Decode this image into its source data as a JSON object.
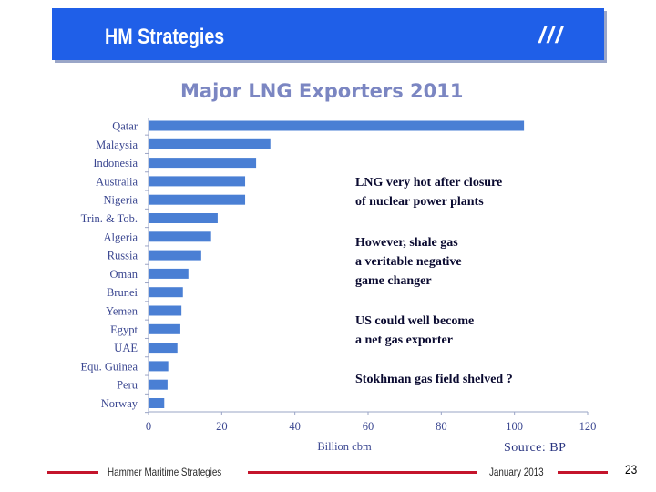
{
  "header": {
    "title": "HM Strategies",
    "mark": "///"
  },
  "chart_data": {
    "type": "bar",
    "orientation": "horizontal",
    "title": "Major LNG Exporters 2011",
    "xlabel": "Billion cbm",
    "ylabel": "",
    "categories": [
      "Qatar",
      "Malaysia",
      "Indonesia",
      "Australia",
      "Nigeria",
      "Trin. & Tob.",
      "Algeria",
      "Russia",
      "Oman",
      "Brunei",
      "Yemen",
      "Egypt",
      "UAE",
      "Equ. Guinea",
      "Peru",
      "Norway"
    ],
    "values": [
      102.6,
      33.3,
      29.4,
      26.4,
      26.4,
      18.9,
      17.1,
      14.4,
      10.9,
      9.4,
      9.0,
      8.7,
      7.9,
      5.4,
      5.2,
      4.3
    ],
    "xlim": [
      0,
      120
    ],
    "xticks": [
      0,
      20,
      40,
      60,
      80,
      100,
      120
    ],
    "bar_color": "#4a7fd4",
    "grid": false
  },
  "annotations": [
    {
      "lines": [
        "LNG very hot after closure",
        "of nuclear power plants"
      ]
    },
    {
      "lines": [
        "However, shale gas",
        "a veritable negative",
        "game changer"
      ]
    },
    {
      "lines": [
        "US could well become",
        "a net gas exporter"
      ]
    },
    {
      "lines": [
        "Stokhman gas field shelved ?"
      ]
    }
  ],
  "source": "Source: BP",
  "footer": {
    "left": "Hammer Maritime Strategies",
    "date": "January 2013",
    "page": "23"
  }
}
